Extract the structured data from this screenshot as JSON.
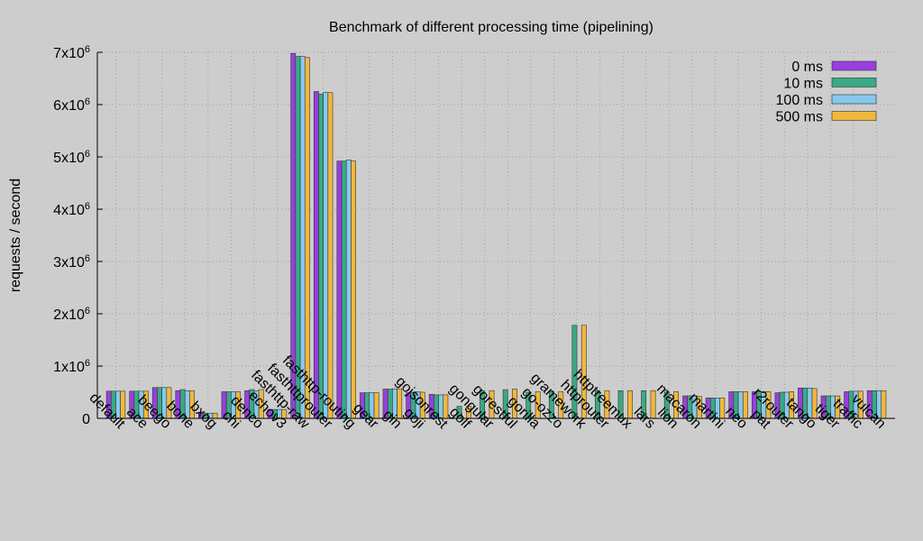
{
  "chart_data": {
    "type": "bar",
    "title": "Benchmark of different processing time (pipelining)",
    "ylabel": "requests / second",
    "xlabel": "",
    "ylim": [
      0,
      7000000
    ],
    "yticks": [
      {
        "value": 0,
        "label": "0",
        "sup": ""
      },
      {
        "value": 1000000,
        "label": "1x10",
        "sup": "6"
      },
      {
        "value": 2000000,
        "label": "2x10",
        "sup": "6"
      },
      {
        "value": 3000000,
        "label": "3x10",
        "sup": "6"
      },
      {
        "value": 4000000,
        "label": "4x10",
        "sup": "6"
      },
      {
        "value": 5000000,
        "label": "5x10",
        "sup": "6"
      },
      {
        "value": 6000000,
        "label": "6x10",
        "sup": "6"
      },
      {
        "value": 7000000,
        "label": "7x10",
        "sup": "6"
      }
    ],
    "grid": true,
    "legend_position": "top-right",
    "categories": [
      "default",
      "ace",
      "beego",
      "bone",
      "bxog",
      "chi",
      "denco",
      "echov3",
      "fasthttp-raw",
      "fasthttprouter",
      "fasthttp-routing",
      "gear",
      "gin",
      "goji",
      "gojsonrest",
      "golf",
      "gongular",
      "gorestful",
      "gorilla",
      "go-ozzo",
      "gramework",
      "httprouter",
      "httptreemux",
      "lars",
      "lion",
      "macaron",
      "martini",
      "neo",
      "pat",
      "r2router",
      "tango",
      "tiger",
      "traffic",
      "vulcan"
    ],
    "series": [
      {
        "name": "0 ms",
        "color": "#9a3ee0",
        "values": [
          520000,
          520000,
          590000,
          530000,
          100000,
          510000,
          530000,
          170000,
          6980000,
          6250000,
          4920000,
          490000,
          560000,
          490000,
          460000,
          0,
          0,
          0,
          0,
          0,
          0,
          0,
          0,
          0,
          0,
          430000,
          390000,
          510000,
          510000,
          490000,
          580000,
          430000,
          510000,
          530000
        ]
      },
      {
        "name": "10 ms",
        "color": "#3aaa84",
        "values": [
          520000,
          520000,
          590000,
          550000,
          100000,
          510000,
          550000,
          170000,
          6920000,
          6200000,
          4920000,
          490000,
          560000,
          500000,
          450000,
          230000,
          530000,
          550000,
          500000,
          510000,
          1780000,
          530000,
          530000,
          530000,
          510000,
          430000,
          390000,
          510000,
          510000,
          500000,
          580000,
          430000,
          520000,
          530000
        ]
      },
      {
        "name": "100 ms",
        "color": "#86c9ee",
        "values": [
          520000,
          520000,
          590000,
          530000,
          100000,
          510000,
          530000,
          170000,
          6920000,
          6230000,
          4940000,
          490000,
          560000,
          510000,
          450000,
          0,
          0,
          0,
          0,
          0,
          0,
          0,
          0,
          0,
          0,
          430000,
          390000,
          510000,
          510000,
          500000,
          580000,
          430000,
          520000,
          530000
        ]
      },
      {
        "name": "500 ms",
        "color": "#f2b83b",
        "values": [
          520000,
          520000,
          590000,
          530000,
          100000,
          510000,
          550000,
          170000,
          6900000,
          6230000,
          4920000,
          490000,
          560000,
          500000,
          450000,
          230000,
          530000,
          560000,
          510000,
          510000,
          1780000,
          530000,
          530000,
          530000,
          510000,
          420000,
          390000,
          510000,
          510000,
          510000,
          570000,
          430000,
          520000,
          530000
        ]
      }
    ]
  }
}
